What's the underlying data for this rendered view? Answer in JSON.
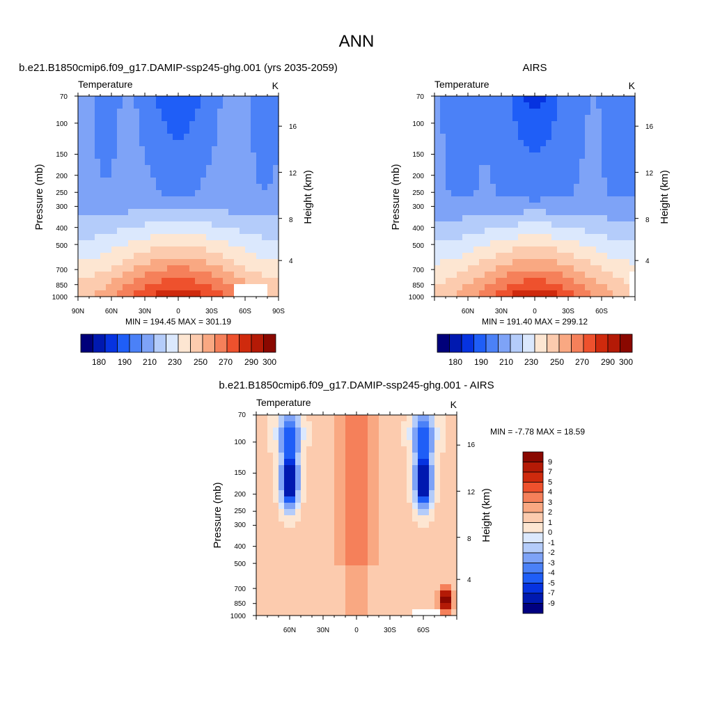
{
  "main_title": "ANN",
  "chart_data": [
    {
      "id": "model",
      "type": "heatmap",
      "subtitle": "b.e21.B1850cmip6.f09_g17.DAMIP-ssp245-ghg.001 (yrs 2035-2059)",
      "left_label": "Temperature",
      "units": "K",
      "ylabel": "Pressure (mb)",
      "ylabel_right": "Height (km)",
      "y_ticks": [
        "70",
        "100",
        "150",
        "200",
        "250",
        "300",
        "400",
        "500",
        "700",
        "850",
        "1000"
      ],
      "y_ticks_right": [
        "16",
        "12",
        "8",
        "4"
      ],
      "x_ticks": [
        "90N",
        "60N",
        "30N",
        "0",
        "30S",
        "60S",
        "90S"
      ],
      "stats": "MIN = 194.45  MAX = 301.19",
      "min": 194.45,
      "max": 301.19,
      "colorbar_labels": [
        "180",
        "190",
        "210",
        "230",
        "250",
        "270",
        "290",
        "300"
      ],
      "field": {
        "tmin": 194.45,
        "tmax": 301.19
      }
    },
    {
      "id": "obs",
      "type": "heatmap",
      "subtitle": "AIRS",
      "left_label": "Temperature",
      "units": "K",
      "ylabel": "Pressure (mb)",
      "ylabel_right": "Height (km)",
      "y_ticks": [
        "70",
        "100",
        "150",
        "200",
        "250",
        "300",
        "400",
        "500",
        "700",
        "850",
        "1000"
      ],
      "y_ticks_right": [
        "16",
        "12",
        "8",
        "4"
      ],
      "x_ticks": [
        "60N",
        "30N",
        "0",
        "30S",
        "60S"
      ],
      "stats": "MIN = 191.40  MAX = 299.12",
      "min": 191.4,
      "max": 299.12,
      "colorbar_labels": [
        "180",
        "190",
        "210",
        "230",
        "250",
        "270",
        "290",
        "300"
      ],
      "field": {
        "tmin": 191.4,
        "tmax": 299.12
      }
    },
    {
      "id": "diff",
      "type": "heatmap",
      "subtitle": "b.e21.B1850cmip6.f09_g17.DAMIP-ssp245-ghg.001 - AIRS",
      "left_label": "Temperature",
      "units": "K",
      "ylabel": "Pressure (mb)",
      "ylabel_right": "Height (km)",
      "y_ticks": [
        "70",
        "100",
        "150",
        "200",
        "250",
        "300",
        "400",
        "500",
        "700",
        "850",
        "1000"
      ],
      "y_ticks_right": [
        "16",
        "12",
        "8",
        "4"
      ],
      "x_ticks": [
        "60N",
        "30N",
        "0",
        "30S",
        "60S"
      ],
      "stats": "MIN =  -7.78  MAX =  18.59",
      "min": -7.78,
      "max": 18.59,
      "colorbar_labels": [
        "9",
        "7",
        "5",
        "4",
        "3",
        "2",
        "1",
        "0",
        "-1",
        "-2",
        "-3",
        "-4",
        "-5",
        "-7",
        "-9"
      ]
    }
  ],
  "colors": {
    "temp_levels": [
      180,
      185,
      190,
      200,
      210,
      220,
      230,
      240,
      250,
      260,
      270,
      280,
      290,
      295,
      300
    ],
    "temp_palette": [
      "#00007a",
      "#0019b0",
      "#0633e0",
      "#1f5ef7",
      "#4b81f7",
      "#7ea3f7",
      "#b4ccfa",
      "#dbe8fd",
      "#fde6d2",
      "#fccbae",
      "#f9a882",
      "#f5805a",
      "#ee512d",
      "#cf2a0d",
      "#b41a06",
      "#8a0800"
    ],
    "diff_levels": [
      -9,
      -7,
      -5,
      -4,
      -3,
      -2,
      -1,
      0,
      1,
      2,
      3,
      4,
      5,
      7,
      9
    ],
    "diff_palette": [
      "#000080",
      "#0019b0",
      "#0633e0",
      "#1f5ef7",
      "#4b81f7",
      "#7ea3f7",
      "#b4ccfa",
      "#dbe8fd",
      "#fde6d2",
      "#fccbae",
      "#f9a882",
      "#f5805a",
      "#ee512d",
      "#cf2a0d",
      "#b41a06",
      "#8a0800"
    ]
  }
}
